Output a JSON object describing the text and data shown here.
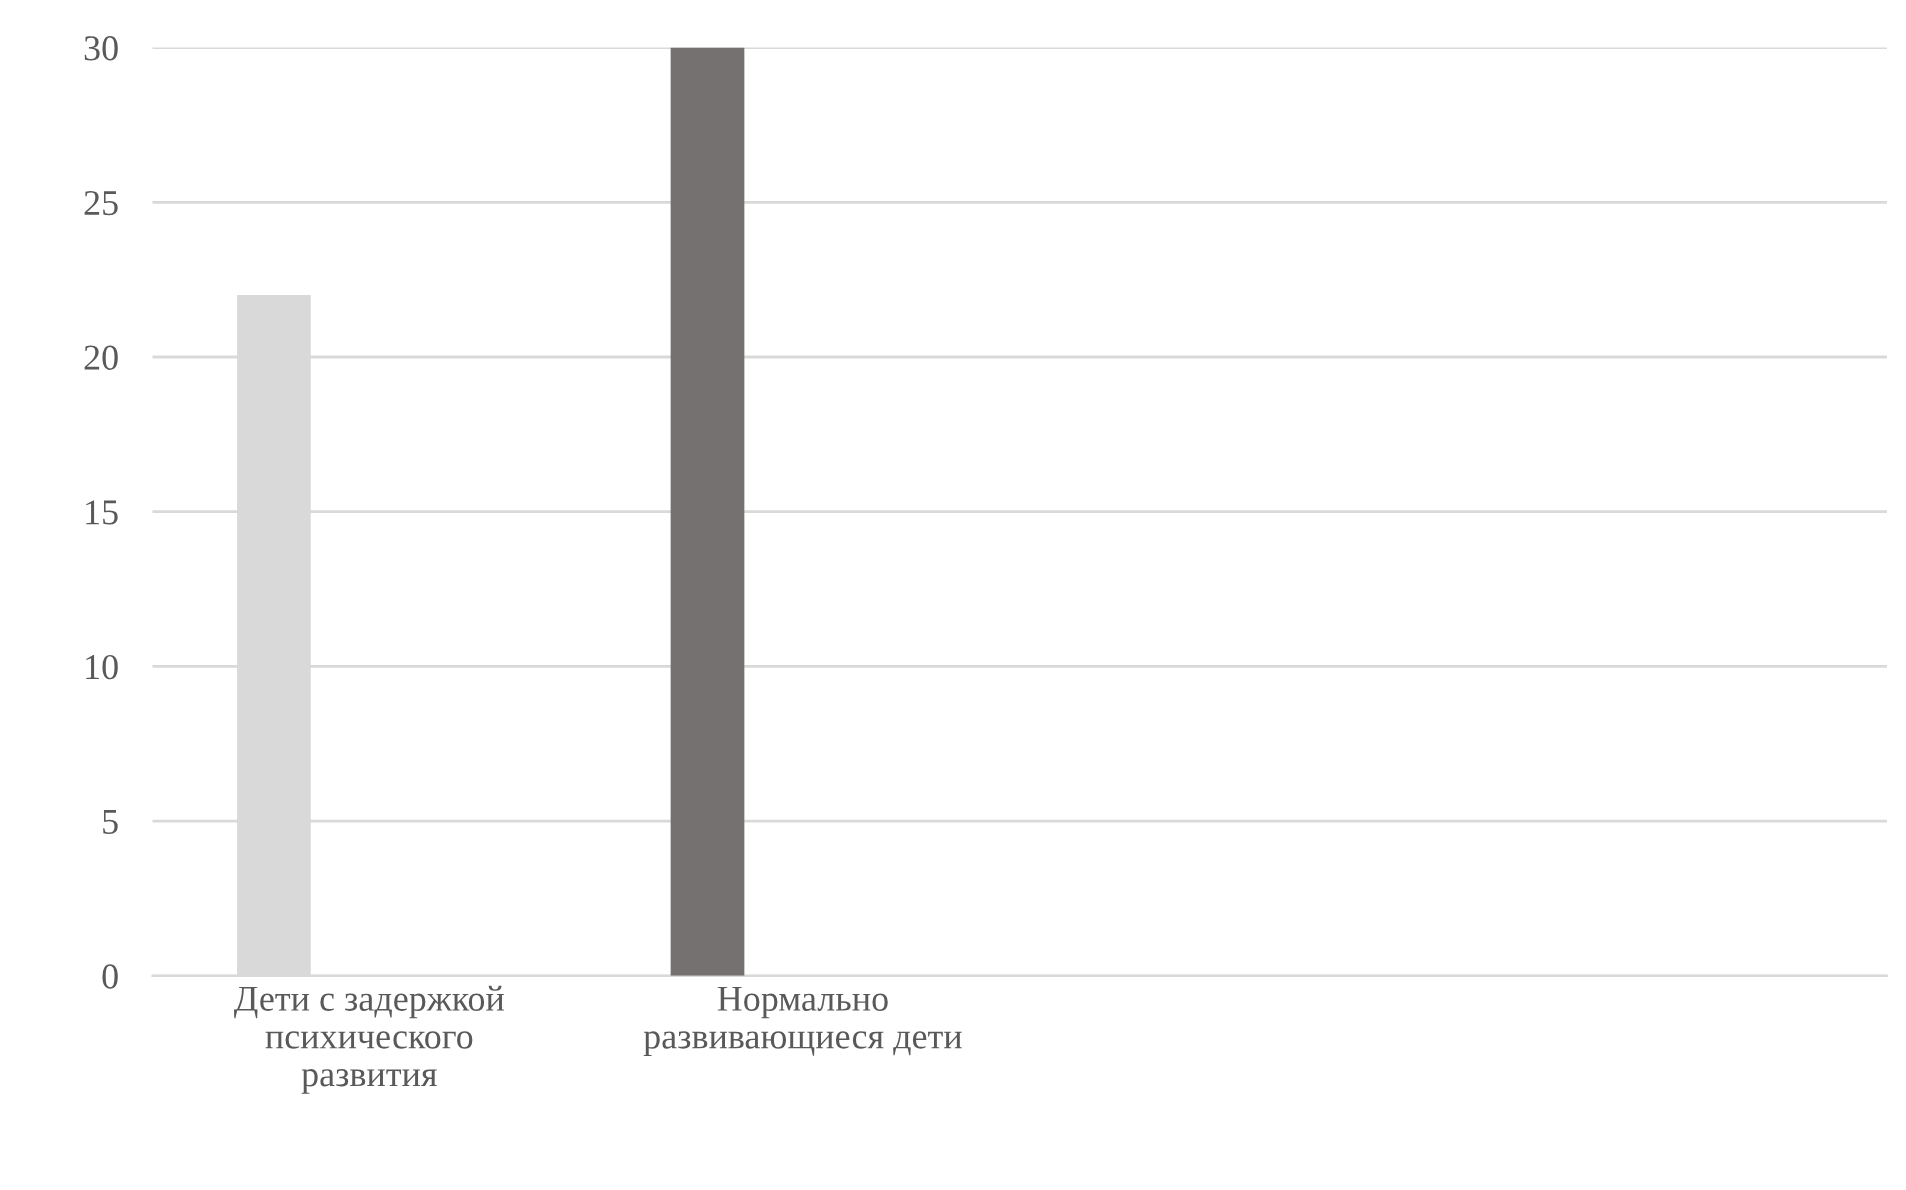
{
  "chart_data": {
    "type": "bar",
    "categories": [
      "Дети с задержкой психического развития",
      "Нормально развивающиеся дети",
      null,
      null
    ],
    "values": [
      22,
      30,
      null,
      null
    ],
    "colors": [
      "#d9d9d9",
      "#767171",
      "#a5a5a5",
      "#a5a5a5"
    ],
    "ylim": [
      0,
      30
    ],
    "yticks": [
      0,
      5,
      10,
      15,
      20,
      25,
      30
    ],
    "grid": "y",
    "legend": false
  }
}
